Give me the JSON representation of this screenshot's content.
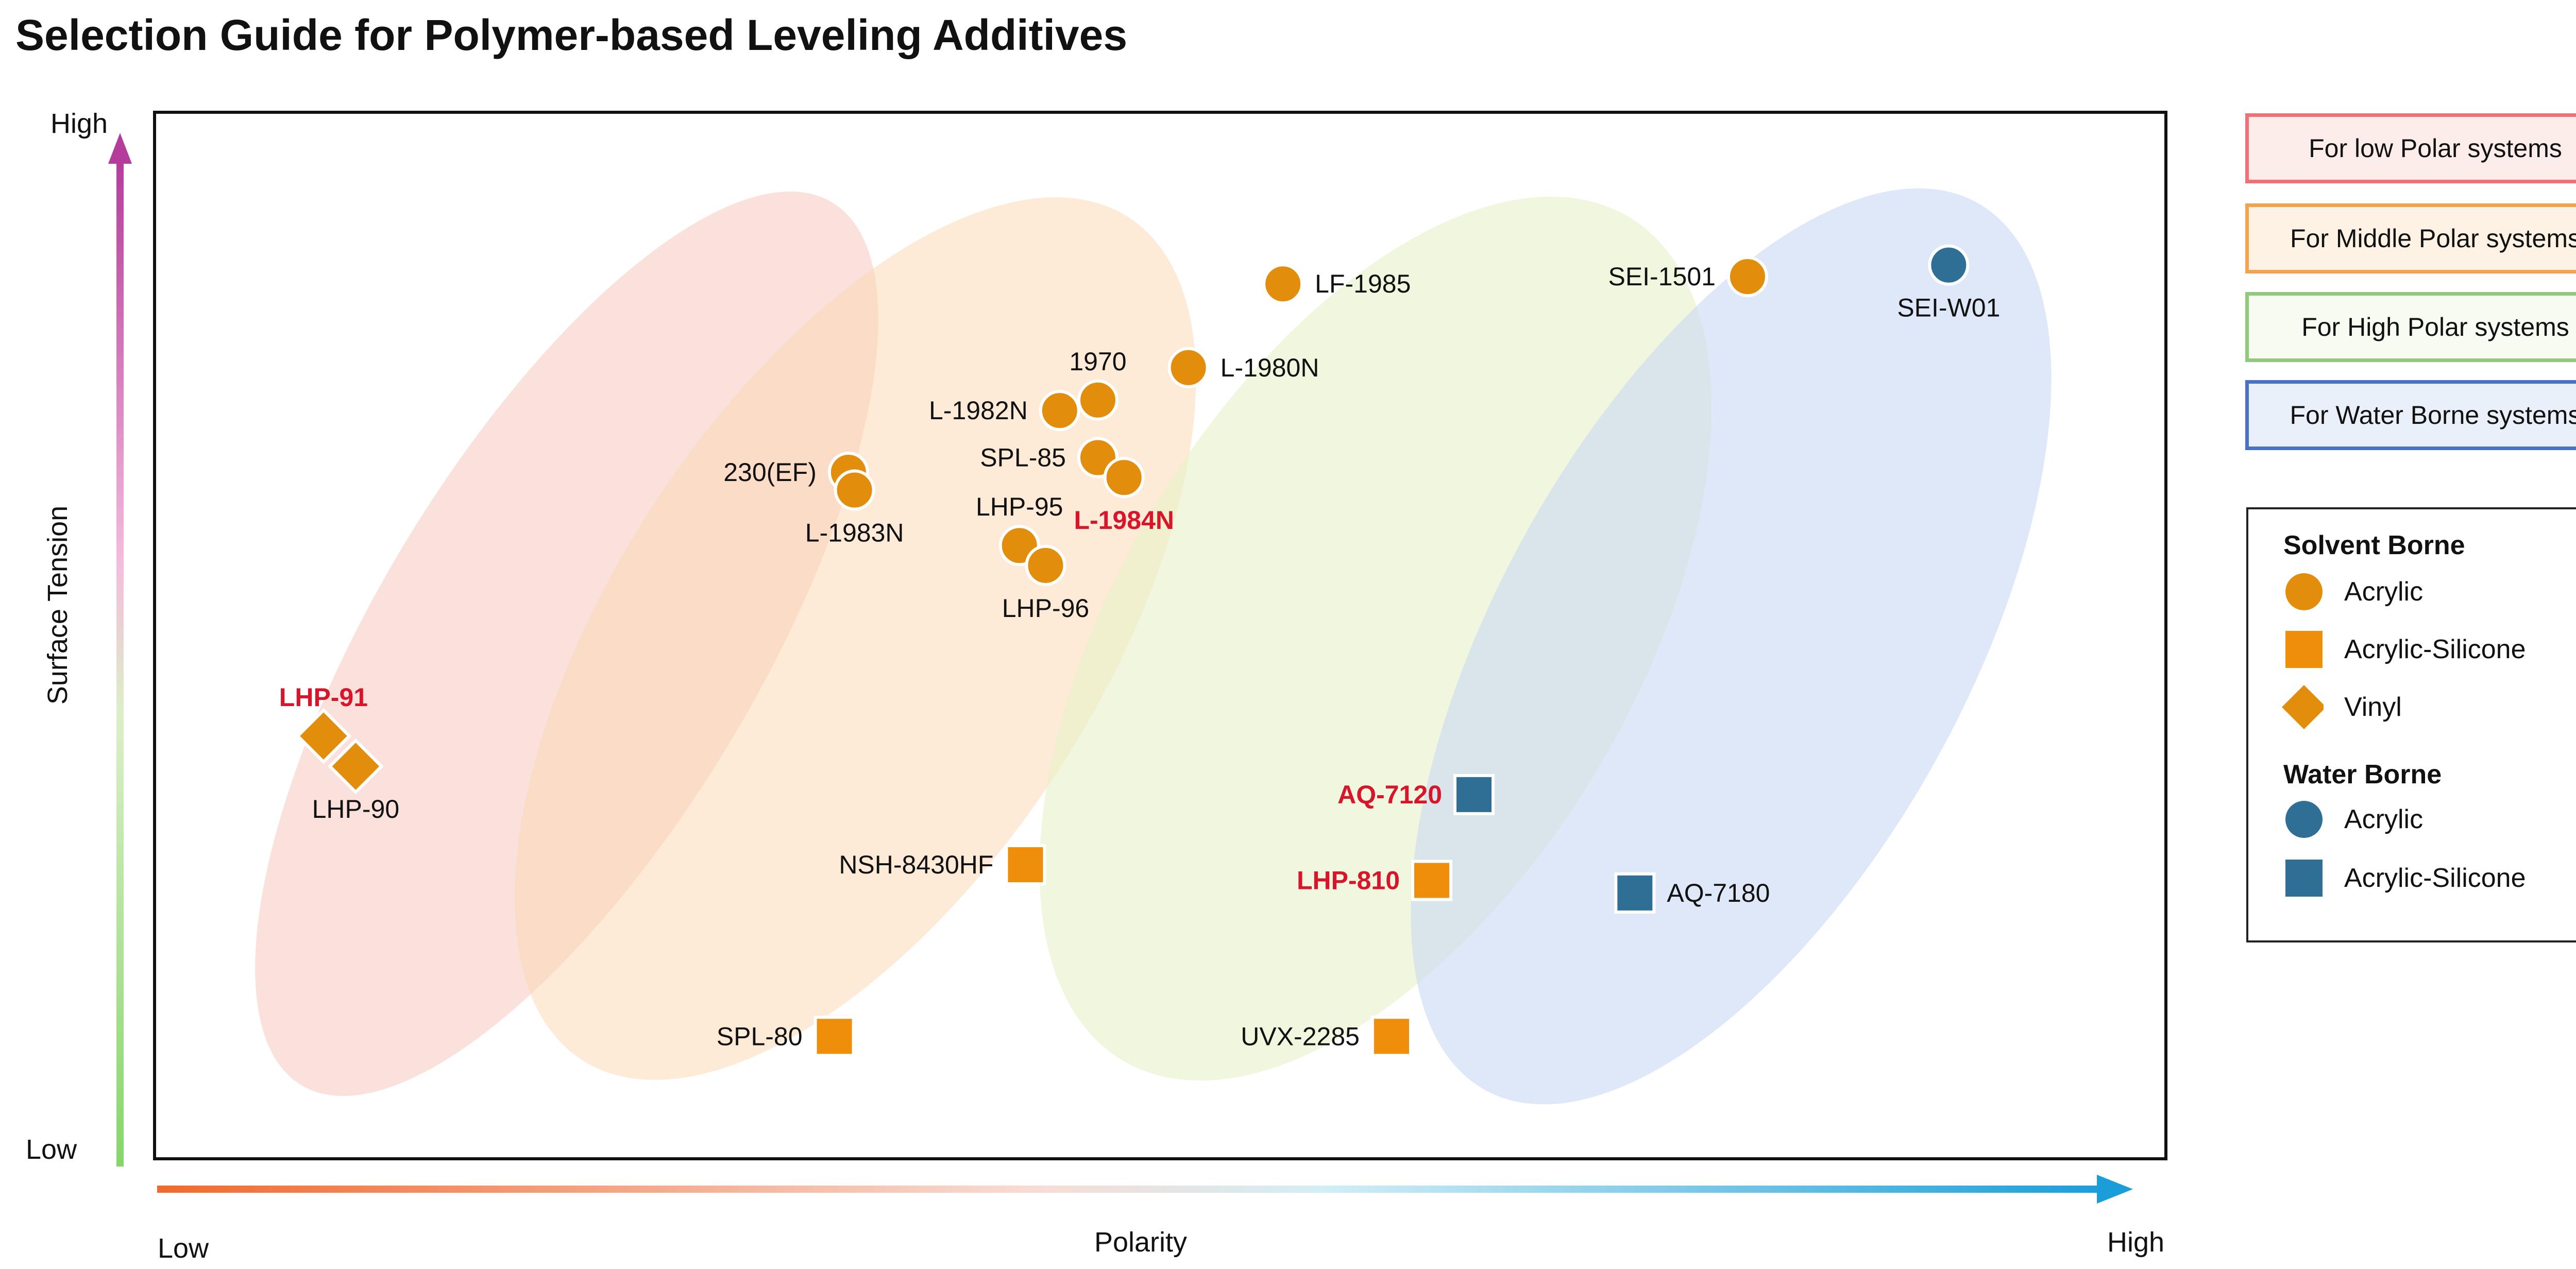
{
  "title": "Selection Guide for Polymer-based Leveling Additives",
  "colors": {
    "solvent": "#E28E0C",
    "solvent_square": "#EE8E0A",
    "water": "#2F6F95",
    "highlight_text": "#D8152B",
    "low_polar": "#F0707A",
    "middle_polar": "#F4A24E",
    "high_polar": "#8FCB7A",
    "water_borne": "#4A72C4"
  },
  "chart_data": {
    "type": "scatter",
    "title": "Selection Guide for Polymer-based Leveling Additives",
    "xlabel": "Polarity",
    "ylabel": "Surface Tension",
    "x_range_labels": [
      "Low",
      "High"
    ],
    "y_range_labels": [
      "Low",
      "High"
    ],
    "xlim": [
      0,
      100
    ],
    "ylim": [
      0,
      100
    ],
    "points": [
      {
        "label": "LF-1985",
        "x": 56.1,
        "y": 83.6,
        "marker": "circle",
        "group": "Solvent Borne",
        "kind": "Acrylic",
        "highlight": false,
        "label_pos": "right"
      },
      {
        "label": "SEI-1501",
        "x": 79.2,
        "y": 84.3,
        "marker": "circle",
        "group": "Solvent Borne",
        "kind": "Acrylic",
        "highlight": false,
        "label_pos": "left"
      },
      {
        "label": "SEI-W01",
        "x": 89.2,
        "y": 85.4,
        "marker": "circle",
        "group": "Water Borne",
        "kind": "Acrylic",
        "highlight": false,
        "label_pos": "below"
      },
      {
        "label": "1970",
        "x": 46.9,
        "y": 72.5,
        "marker": "circle",
        "group": "Solvent Borne",
        "kind": "Acrylic",
        "highlight": false,
        "label_pos": "above"
      },
      {
        "label": "L-1980N",
        "x": 51.4,
        "y": 75.6,
        "marker": "circle",
        "group": "Solvent Borne",
        "kind": "Acrylic",
        "highlight": false,
        "label_pos": "right"
      },
      {
        "label": "L-1982N",
        "x": 45.0,
        "y": 71.5,
        "marker": "circle",
        "group": "Solvent Borne",
        "kind": "Acrylic",
        "highlight": false,
        "label_pos": "left"
      },
      {
        "label": "SPL-85",
        "x": 46.9,
        "y": 67.0,
        "marker": "circle",
        "group": "Solvent Borne",
        "kind": "Acrylic",
        "highlight": false,
        "label_pos": "left"
      },
      {
        "label": "L-1984N",
        "x": 48.2,
        "y": 65.1,
        "marker": "circle",
        "group": "Solvent Borne",
        "kind": "Acrylic",
        "highlight": true,
        "label_pos": "below"
      },
      {
        "label": "230(EF)",
        "x": 34.5,
        "y": 65.6,
        "marker": "circle",
        "group": "Solvent Borne",
        "kind": "Acrylic",
        "highlight": false,
        "label_pos": "left"
      },
      {
        "label": "L-1983N",
        "x": 34.8,
        "y": 63.9,
        "marker": "circle",
        "group": "Solvent Borne",
        "kind": "Acrylic",
        "highlight": false,
        "label_pos": "below"
      },
      {
        "label": "LHP-95",
        "x": 43.0,
        "y": 58.6,
        "marker": "circle",
        "group": "Solvent Borne",
        "kind": "Acrylic",
        "highlight": false,
        "label_pos": "above"
      },
      {
        "label": "LHP-96",
        "x": 44.3,
        "y": 56.7,
        "marker": "circle",
        "group": "Solvent Borne",
        "kind": "Acrylic",
        "highlight": false,
        "label_pos": "below"
      },
      {
        "label": "LHP-91",
        "x": 8.4,
        "y": 40.4,
        "marker": "diamond",
        "group": "Solvent Borne",
        "kind": "Vinyl",
        "highlight": true,
        "label_pos": "above"
      },
      {
        "label": "LHP-90",
        "x": 10.0,
        "y": 37.5,
        "marker": "diamond",
        "group": "Solvent Borne",
        "kind": "Vinyl",
        "highlight": false,
        "label_pos": "below"
      },
      {
        "label": "AQ-7120",
        "x": 65.6,
        "y": 34.8,
        "marker": "square",
        "group": "Water Borne",
        "kind": "Acrylic-Silicone",
        "highlight": true,
        "label_pos": "left"
      },
      {
        "label": "NSH-8430HF",
        "x": 43.3,
        "y": 28.1,
        "marker": "square",
        "group": "Solvent Borne",
        "kind": "Acrylic-Silicone",
        "highlight": false,
        "label_pos": "left"
      },
      {
        "label": "LHP-810",
        "x": 63.5,
        "y": 26.6,
        "marker": "square",
        "group": "Solvent Borne",
        "kind": "Acrylic-Silicone",
        "highlight": true,
        "label_pos": "left"
      },
      {
        "label": "AQ-7180",
        "x": 73.6,
        "y": 25.4,
        "marker": "square",
        "group": "Water Borne",
        "kind": "Acrylic-Silicone",
        "highlight": false,
        "label_pos": "right"
      },
      {
        "label": "SPL-80",
        "x": 33.8,
        "y": 11.7,
        "marker": "square",
        "group": "Solvent Borne",
        "kind": "Acrylic-Silicone",
        "highlight": false,
        "label_pos": "left"
      },
      {
        "label": "UVX-2285",
        "x": 61.5,
        "y": 11.7,
        "marker": "square",
        "group": "Solvent Borne",
        "kind": "Acrylic-Silicone",
        "highlight": false,
        "label_pos": "left"
      }
    ],
    "regions": [
      {
        "label": "For low Polar systems",
        "color": "#F7C9C0"
      },
      {
        "label": "For Middle Polar systems",
        "color": "#FBD9B6"
      },
      {
        "label": "For High Polar systems",
        "color": "#E8F1C8"
      },
      {
        "label": "For Water Borne systems",
        "color": "#C9D9F3"
      }
    ]
  },
  "legend_regions": [
    {
      "label": "For low Polar systems",
      "border": "#F0707A",
      "fill": "#FCEDEB"
    },
    {
      "label": "For Middle Polar systems",
      "border": "#F4A24E",
      "fill": "#FEF2E5"
    },
    {
      "label": "For High Polar systems",
      "border": "#8FCB7A",
      "fill": "#F7FBF1"
    },
    {
      "label": "For Water Borne systems",
      "border": "#4A72C4",
      "fill": "#EAF0FA"
    }
  ],
  "legend_key": {
    "solvent_heading": "Solvent Borne",
    "solvent_items": [
      "Acrylic",
      "Acrylic-Silicone",
      "Vinyl"
    ],
    "water_heading": "Water Borne",
    "water_items": [
      "Acrylic",
      "Acrylic-Silicone"
    ]
  }
}
